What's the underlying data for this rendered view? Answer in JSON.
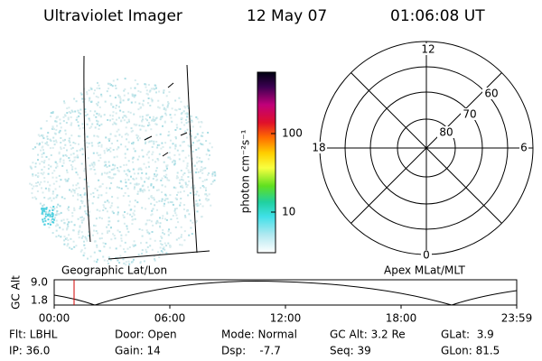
{
  "header": {
    "title": "Ultraviolet Imager",
    "date": "12 May 07",
    "time": "01:06:08 UT"
  },
  "colorbar": {
    "label": "photon cm⁻²s⁻¹",
    "ticks": [
      "100",
      "10"
    ]
  },
  "polar": {
    "labels": [
      "12",
      "60",
      "70",
      "80",
      "18",
      "6",
      "0"
    ]
  },
  "captions": [
    "Geographic Lat/Lon",
    "Apex MLat/MLT"
  ],
  "orbit_plot": {
    "ylabel": "GC Alt",
    "yticks": [
      "9.0",
      "1.8"
    ],
    "xticks": [
      "00:00",
      "06:00",
      "12:00",
      "18:00",
      "23:59"
    ]
  },
  "info": {
    "rows": [
      [
        "Flt: LBHL",
        "Door: Open",
        "Mode: Normal",
        "GC Alt: 3.2 Re",
        "GLat:  3.9"
      ],
      [
        "IP: 36.0",
        "Gain: 14",
        "Dsp:    -7.7",
        "Seq: 39",
        "GLon: 81.5"
      ]
    ]
  }
}
